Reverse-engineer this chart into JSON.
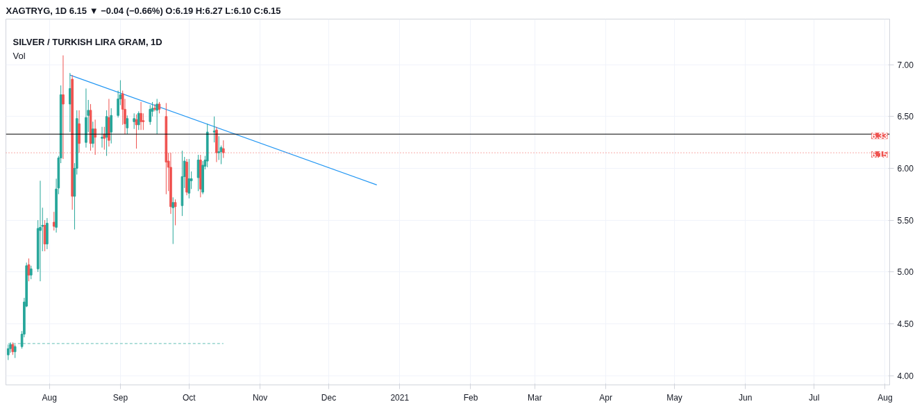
{
  "chart_data": {
    "type": "candlestick",
    "title": "SILVER / TURKISH LIRA GRAM, 1D",
    "annotations": [
      "XAGTRYG, 1D  6.15 ▼ −0.04 (−0.66%)  O:6.19 H:6.27 L:6.10 C:6.15",
      "Vol"
    ],
    "x": [
      "2020-07-14",
      "2020-07-15",
      "2020-07-16",
      "2020-07-17",
      "2020-07-20",
      "2020-07-21",
      "2020-07-22",
      "2020-07-23",
      "2020-07-24",
      "2020-07-27",
      "2020-07-28",
      "2020-07-29",
      "2020-07-30",
      "2020-07-31",
      "2020-08-03",
      "2020-08-04",
      "2020-08-05",
      "2020-08-06",
      "2020-08-07",
      "2020-08-10",
      "2020-08-11",
      "2020-08-12",
      "2020-08-13",
      "2020-08-14",
      "2020-08-17",
      "2020-08-18",
      "2020-08-19",
      "2020-08-20",
      "2020-08-21",
      "2020-08-24",
      "2020-08-25",
      "2020-08-26",
      "2020-08-27",
      "2020-08-28",
      "2020-08-31",
      "2020-09-01",
      "2020-09-02",
      "2020-09-03",
      "2020-09-04",
      "2020-09-07",
      "2020-09-08",
      "2020-09-09",
      "2020-09-10",
      "2020-09-11",
      "2020-09-14",
      "2020-09-15",
      "2020-09-16",
      "2020-09-17",
      "2020-09-18",
      "2020-09-21",
      "2020-09-22",
      "2020-09-23",
      "2020-09-24",
      "2020-09-25",
      "2020-09-28",
      "2020-09-29",
      "2020-09-30",
      "2020-10-01",
      "2020-10-02",
      "2020-10-05",
      "2020-10-06",
      "2020-10-07",
      "2020-10-08",
      "2020-10-09",
      "2020-10-12",
      "2020-10-13",
      "2020-10-14",
      "2020-10-15",
      "2020-10-16"
    ],
    "ohlc": [
      [
        4.2,
        4.3,
        4.15,
        4.26
      ],
      [
        4.26,
        4.32,
        4.22,
        4.3
      ],
      [
        4.3,
        4.32,
        4.2,
        4.23
      ],
      [
        4.23,
        4.3,
        4.17,
        4.28
      ],
      [
        4.28,
        4.43,
        4.26,
        4.4
      ],
      [
        4.4,
        4.75,
        4.37,
        4.71
      ],
      [
        4.67,
        5.09,
        4.66,
        5.06
      ],
      [
        5.07,
        5.13,
        4.91,
        4.97
      ],
      [
        4.97,
        5.06,
        4.93,
        5.03
      ],
      [
        5.03,
        5.5,
        5.0,
        5.42
      ],
      [
        5.4,
        5.88,
        4.91,
        5.43
      ],
      [
        5.44,
        5.62,
        5.2,
        5.45
      ],
      [
        5.45,
        5.5,
        5.2,
        5.27
      ],
      [
        5.27,
        5.52,
        5.22,
        5.47
      ],
      [
        5.48,
        5.58,
        5.4,
        5.44
      ],
      [
        5.43,
        5.9,
        5.38,
        5.8
      ],
      [
        5.81,
        6.12,
        5.75,
        6.1
      ],
      [
        6.1,
        6.8,
        6.05,
        6.71
      ],
      [
        6.71,
        7.09,
        6.09,
        6.62
      ],
      [
        6.62,
        6.92,
        6.35,
        6.77
      ],
      [
        6.86,
        6.9,
        5.6,
        5.73
      ],
      [
        5.73,
        6.05,
        5.41,
        6.0
      ],
      [
        6.0,
        6.56,
        5.94,
        6.48
      ],
      [
        6.43,
        6.56,
        6.15,
        6.24
      ],
      [
        6.25,
        6.77,
        6.2,
        6.49
      ],
      [
        6.51,
        6.66,
        6.35,
        6.56
      ],
      [
        6.56,
        6.62,
        6.17,
        6.24
      ],
      [
        6.24,
        6.45,
        6.2,
        6.38
      ],
      [
        6.38,
        6.47,
        6.13,
        6.3
      ],
      [
        6.29,
        6.4,
        6.2,
        6.3
      ],
      [
        6.33,
        6.4,
        6.18,
        6.29
      ],
      [
        6.3,
        6.56,
        6.12,
        6.5
      ],
      [
        6.49,
        6.67,
        6.21,
        6.27
      ],
      [
        6.35,
        6.58,
        6.24,
        6.51
      ],
      [
        6.51,
        6.75,
        6.49,
        6.67
      ],
      [
        6.67,
        6.85,
        6.61,
        6.71
      ],
      [
        6.72,
        6.75,
        6.42,
        6.57
      ],
      [
        6.57,
        6.67,
        6.33,
        6.43
      ],
      [
        6.39,
        6.51,
        6.33,
        6.48
      ],
      [
        6.45,
        6.53,
        6.38,
        6.48
      ],
      [
        6.47,
        6.52,
        6.19,
        6.42
      ],
      [
        6.42,
        6.55,
        6.37,
        6.53
      ],
      [
        6.53,
        6.64,
        6.37,
        6.45
      ],
      [
        6.46,
        6.53,
        6.37,
        6.45
      ],
      [
        6.45,
        6.61,
        6.42,
        6.57
      ],
      [
        6.55,
        6.64,
        6.5,
        6.58
      ],
      [
        6.58,
        6.62,
        6.55,
        6.57
      ],
      [
        6.56,
        6.67,
        6.33,
        6.62
      ],
      [
        6.62,
        6.64,
        6.53,
        6.57
      ],
      [
        6.5,
        6.63,
        5.75,
        6.06
      ],
      [
        6.07,
        6.15,
        5.78,
        6.01
      ],
      [
        6.01,
        6.15,
        5.56,
        5.63
      ],
      [
        5.62,
        5.72,
        5.27,
        5.67
      ],
      [
        5.67,
        5.7,
        5.45,
        5.63
      ],
      [
        5.64,
        6.17,
        5.54,
        5.92
      ],
      [
        5.92,
        6.11,
        5.81,
        6.07
      ],
      [
        6.06,
        6.09,
        5.74,
        5.77
      ],
      [
        5.76,
        6.09,
        5.71,
        5.9
      ],
      [
        5.88,
        5.97,
        5.8,
        5.9
      ],
      [
        5.91,
        6.13,
        5.78,
        6.08
      ],
      [
        6.08,
        6.13,
        5.72,
        5.8
      ],
      [
        5.77,
        6.07,
        5.75,
        6.03
      ],
      [
        6.02,
        6.12,
        5.99,
        6.08
      ],
      [
        6.07,
        6.43,
        6.01,
        6.35
      ],
      [
        6.35,
        6.5,
        6.25,
        6.36
      ],
      [
        6.37,
        6.4,
        6.06,
        6.15
      ],
      [
        6.15,
        6.31,
        6.08,
        6.16
      ],
      [
        6.16,
        6.22,
        6.04,
        6.2
      ],
      [
        6.19,
        6.27,
        6.1,
        6.15
      ]
    ],
    "colors": [
      "#26a69a",
      "#26a69a",
      "#ef5350",
      "#26a69a",
      "#26a69a",
      "#26a69a",
      "#26a69a",
      "#ef5350",
      "#26a69a",
      "#26a69a",
      "#26a69a",
      "#26a69a",
      "#ef5350",
      "#26a69a",
      "#ef5350",
      "#26a69a",
      "#26a69a",
      "#26a69a",
      "#ef5350",
      "#26a69a",
      "#ef5350",
      "#26a69a",
      "#26a69a",
      "#ef5350",
      "#26a69a",
      "#26a69a",
      "#ef5350",
      "#26a69a",
      "#ef5350",
      "#26a69a",
      "#ef5350",
      "#26a69a",
      "#ef5350",
      "#26a69a",
      "#26a69a",
      "#26a69a",
      "#ef5350",
      "#ef5350",
      "#26a69a",
      "#26a69a",
      "#ef5350",
      "#26a69a",
      "#ef5350",
      "#ef5350",
      "#26a69a",
      "#26a69a",
      "#ef5350",
      "#26a69a",
      "#ef5350",
      "#ef5350",
      "#ef5350",
      "#ef5350",
      "#26a69a",
      "#ef5350",
      "#26a69a",
      "#26a69a",
      "#ef5350",
      "#26a69a",
      "#26a69a",
      "#26a69a",
      "#ef5350",
      "#26a69a",
      "#26a69a",
      "#26a69a",
      "#26a69a",
      "#ef5350",
      "#26a69a",
      "#26a69a",
      "#ef5350"
    ],
    "series": [
      {
        "type": "line",
        "color": "#2196f3",
        "line_style": "solid",
        "x": [
          "2020-08-10",
          "2020-12-22"
        ],
        "values": [
          6.9,
          5.84
        ]
      },
      {
        "type": "line",
        "color": "#80cbc4",
        "line_style": "dashed",
        "x": [
          "2020-07-14",
          "2020-10-16"
        ],
        "values": [
          4.31,
          4.31
        ]
      }
    ],
    "ref_lines": [
      {
        "axis": "y",
        "value": 6.33,
        "label": "6.33",
        "color": "#000000",
        "line_style": "solid"
      },
      {
        "axis": "y",
        "value": 6.15,
        "label": "6.15",
        "color": "#ef5350",
        "line_style": "dotted"
      }
    ],
    "xlim": [
      "2020-07-13",
      "2021-08-03"
    ],
    "xticks": [
      {
        "value": "2020-08-01",
        "label": "Aug"
      },
      {
        "value": "2020-09-01",
        "label": "Sep"
      },
      {
        "value": "2020-10-01",
        "label": "Oct"
      },
      {
        "value": "2020-11-01",
        "label": "Nov"
      },
      {
        "value": "2020-12-01",
        "label": "Dec"
      },
      {
        "value": "2021-01-01",
        "label": "2021"
      },
      {
        "value": "2021-02-01",
        "label": "Feb"
      },
      {
        "value": "2021-03-01",
        "label": "Mar"
      },
      {
        "value": "2021-04-01",
        "label": "Apr"
      },
      {
        "value": "2021-05-01",
        "label": "May"
      },
      {
        "value": "2021-06-01",
        "label": "Jun"
      },
      {
        "value": "2021-07-01",
        "label": "Jul"
      },
      {
        "value": "2021-08-01",
        "label": "Aug"
      }
    ],
    "ylim": [
      3.91,
      7.44
    ],
    "yticks": [
      {
        "value": 4.0,
        "label": "4.00"
      },
      {
        "value": 4.5,
        "label": "4.50"
      },
      {
        "value": 5.0,
        "label": "5.00"
      },
      {
        "value": 5.5,
        "label": "5.50"
      },
      {
        "value": 6.0,
        "label": "6.00"
      },
      {
        "value": 6.5,
        "label": "6.50"
      },
      {
        "value": 7.0,
        "label": "7.00"
      }
    ],
    "grid": true
  }
}
